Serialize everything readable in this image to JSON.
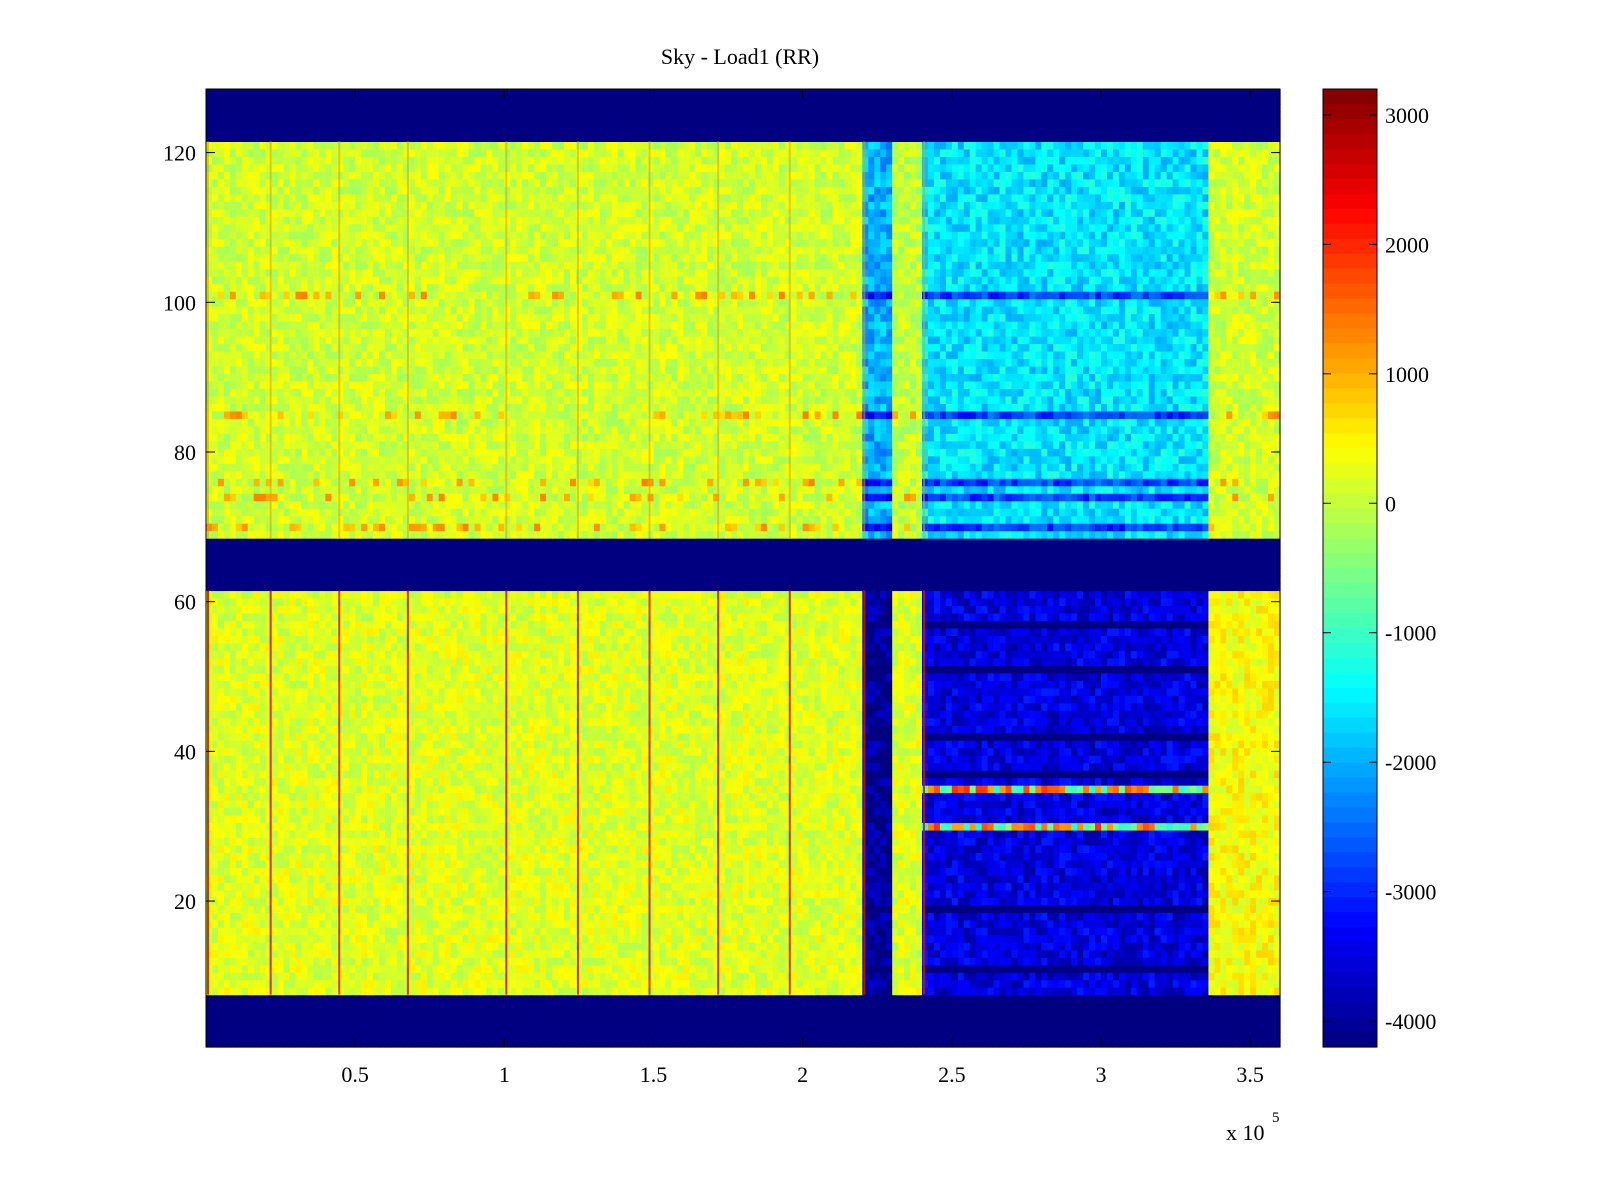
{
  "chart_data": {
    "type": "heatmap",
    "title": "Sky - Load1 (RR)",
    "x_exponent_label": "x 10",
    "x_exponent_power": "5",
    "x_ticks": [
      {
        "value": 0.5,
        "label": "0.5"
      },
      {
        "value": 1,
        "label": "1"
      },
      {
        "value": 1.5,
        "label": "1.5"
      },
      {
        "value": 2,
        "label": "2"
      },
      {
        "value": 2.5,
        "label": "2.5"
      },
      {
        "value": 3,
        "label": "3"
      },
      {
        "value": 3.5,
        "label": "3.5"
      }
    ],
    "y_ticks": [
      {
        "value": 20,
        "label": "20"
      },
      {
        "value": 40,
        "label": "40"
      },
      {
        "value": 60,
        "label": "60"
      },
      {
        "value": 80,
        "label": "80"
      },
      {
        "value": 100,
        "label": "100"
      },
      {
        "value": 120,
        "label": "120"
      }
    ],
    "xlim": [
      0,
      3.6
    ],
    "ylim": [
      0.5,
      128.5
    ],
    "colormap": "jet",
    "colorbar": {
      "range": [
        -4200,
        3200
      ],
      "ticks": [
        {
          "value": 3000,
          "label": "3000"
        },
        {
          "value": 2000,
          "label": "2000"
        },
        {
          "value": 1000,
          "label": "1000"
        },
        {
          "value": 0,
          "label": "0"
        },
        {
          "value": -1000,
          "label": "-1000"
        },
        {
          "value": -2000,
          "label": "-2000"
        },
        {
          "value": -3000,
          "label": "-3000"
        },
        {
          "value": -4000,
          "label": "-4000"
        }
      ]
    },
    "masked_channel_bands": [
      [
        0.5,
        7.5
      ],
      [
        61.5,
        68.5
      ],
      [
        121.5,
        128.5
      ]
    ],
    "masked_value": -4200,
    "time_segments": [
      {
        "x": [
          0,
          2.2
        ],
        "low_band": 200,
        "high_band": 100,
        "description_value_note": ""
      },
      {
        "x": [
          2.2,
          2.3
        ],
        "low_band": -4000,
        "high_band": -2000
      },
      {
        "x": [
          2.3,
          2.4
        ],
        "low_band": 200,
        "high_band": 0
      },
      {
        "x": [
          2.4,
          3.36
        ],
        "low_band": -3500,
        "high_band": -1600
      },
      {
        "x": [
          3.36,
          3.6
        ],
        "low_band": 400,
        "high_band": 100
      }
    ],
    "strong_negative_rows_high_band": [
      70,
      74,
      76,
      85,
      101
    ],
    "strong_negative_rows_low_band": [
      11,
      19,
      37,
      42,
      51,
      57
    ],
    "hot_rows_in_segment_4": [
      30,
      35
    ],
    "red_column_positions": [
      0.0,
      0.21,
      0.44,
      0.67,
      1.0,
      1.24,
      1.48,
      1.71,
      1.95,
      2.2,
      2.4
    ]
  }
}
